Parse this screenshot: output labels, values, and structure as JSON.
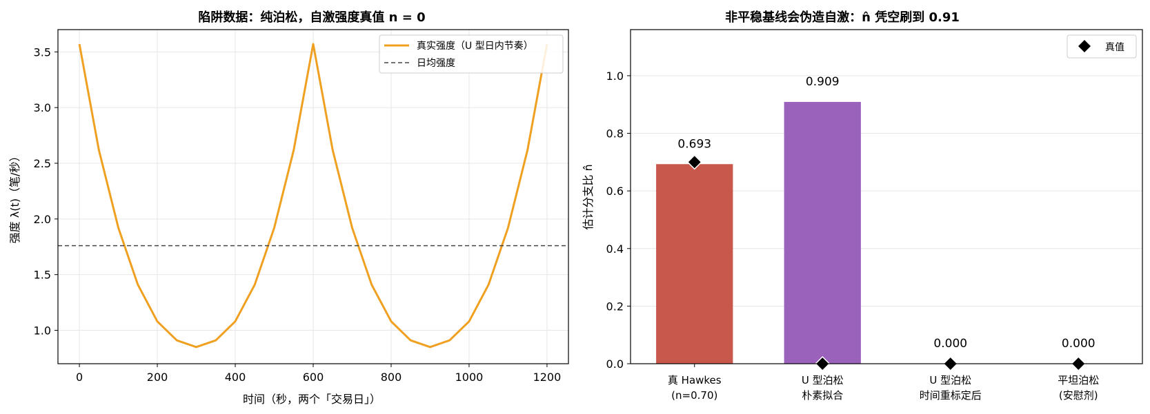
{
  "chart_data": [
    {
      "type": "line",
      "title": "陷阱数据：纯泊松，自激强度真值 n = 0",
      "xlabel": "时间（秒，两个「交易日」）",
      "ylabel": "强度 λ(t)（笔/秒）",
      "xlim": [
        -55,
        1255
      ],
      "ylim": [
        0.7,
        3.7
      ],
      "xticks": [
        0,
        200,
        400,
        600,
        800,
        1000,
        1200
      ],
      "yticks": [
        1.0,
        1.5,
        2.0,
        2.5,
        3.0,
        3.5
      ],
      "xtick_labels": [
        "0",
        "200",
        "400",
        "600",
        "800",
        "1000",
        "1200"
      ],
      "ytick_labels": [
        "1.0",
        "1.5",
        "2.0",
        "2.5",
        "3.0",
        "3.5"
      ],
      "grid": true,
      "legend_position": "top-right",
      "series": [
        {
          "name": "真实强度（U 型日内节奏）",
          "color": "#f0a020",
          "style": "solid",
          "x": [
            0,
            50,
            100,
            150,
            200,
            250,
            300,
            350,
            400,
            450,
            500,
            550,
            600,
            650,
            700,
            750,
            800,
            850,
            900,
            950,
            1000,
            1050,
            1100,
            1150,
            1200
          ],
          "y": [
            3.57,
            2.62,
            1.92,
            1.41,
            1.08,
            0.91,
            0.85,
            0.91,
            1.08,
            1.41,
            1.92,
            2.62,
            3.57,
            2.62,
            1.92,
            1.41,
            1.08,
            0.91,
            0.85,
            0.91,
            1.08,
            1.41,
            1.92,
            2.62,
            3.57
          ]
        },
        {
          "name": "日均强度",
          "color": "#444444",
          "style": "dashed",
          "y_constant": 1.76
        }
      ]
    },
    {
      "type": "bar",
      "title": "非平稳基线会伪造自激：n̂ 凭空刷到 0.91",
      "xlabel": "",
      "ylabel": "估计分支比 n̂",
      "ylim": [
        0,
        1.16
      ],
      "yticks": [
        0.0,
        0.2,
        0.4,
        0.6,
        0.8,
        1.0
      ],
      "ytick_labels": [
        "0.0",
        "0.2",
        "0.4",
        "0.6",
        "0.8",
        "1.0"
      ],
      "grid": true,
      "legend_position": "top-right",
      "categories": [
        [
          "真 Hawkes",
          "(n=0.70)"
        ],
        [
          "U 型泊松",
          "朴素拟合"
        ],
        [
          "U 型泊松",
          "时间重标定后"
        ],
        [
          "平坦泊松",
          "(安慰剂)"
        ]
      ],
      "values": [
        0.693,
        0.909,
        0.0,
        0.0
      ],
      "value_labels": [
        "0.693",
        "0.909",
        "0.000",
        "0.000"
      ],
      "true_values": [
        0.7,
        0.0,
        0.0,
        0.0
      ],
      "true_legend": "真值",
      "colors": [
        "#c9584c",
        "#9b62bb",
        "#3b86c6",
        "#8a8a8a"
      ]
    }
  ]
}
